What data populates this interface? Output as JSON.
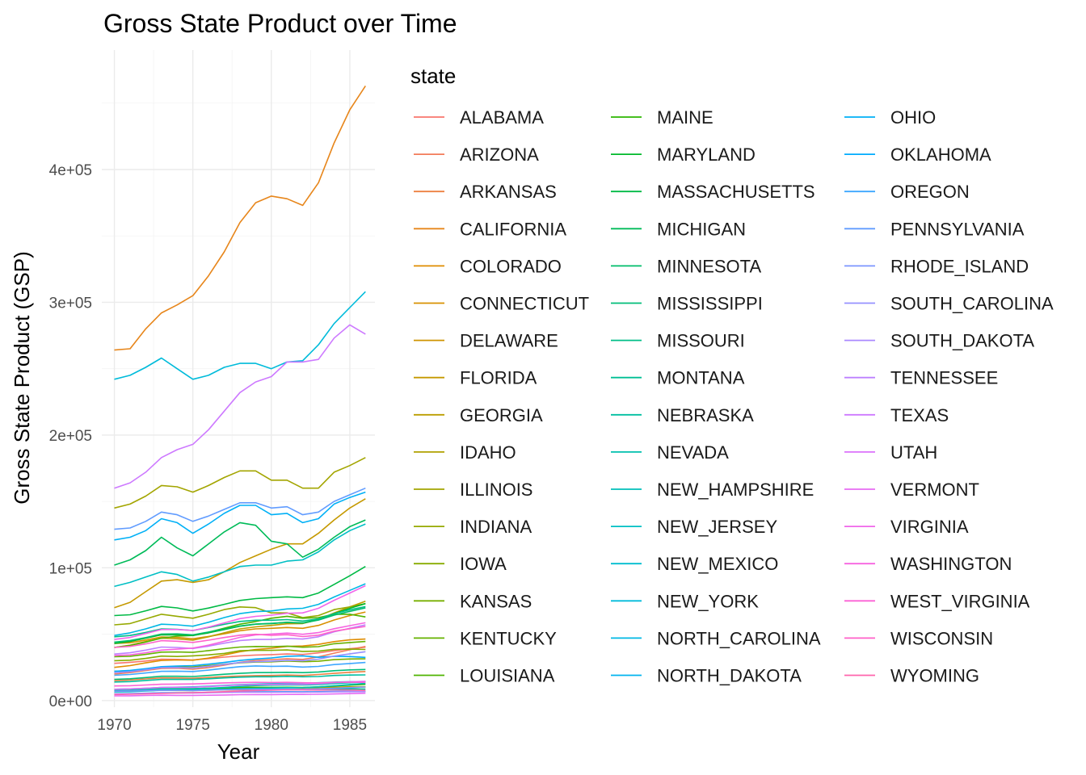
{
  "chart_data": {
    "type": "line",
    "title": "Gross State Product over Time",
    "xlabel": "Year",
    "ylabel": "Gross State Product (GSP)",
    "x": [
      1970,
      1971,
      1972,
      1973,
      1974,
      1975,
      1976,
      1977,
      1978,
      1979,
      1980,
      1981,
      1982,
      1983,
      1984,
      1985,
      1986
    ],
    "xlim": [
      1969.2,
      1986.6
    ],
    "ylim": [
      -5000,
      490000
    ],
    "x_ticks": [
      1970,
      1975,
      1980,
      1985
    ],
    "x_tick_labels": [
      "1970",
      "1975",
      "1980",
      "1985"
    ],
    "y_ticks": [
      0,
      100000,
      200000,
      300000,
      400000
    ],
    "y_tick_labels": [
      "0e+00",
      "1e+05",
      "2e+05",
      "3e+05",
      "4e+05"
    ],
    "grid": true,
    "legend": {
      "title": "state",
      "placement": "right",
      "columns": 3
    },
    "series": [
      {
        "name": "ALABAMA",
        "color": "#F8766D",
        "values": [
          28000,
          28800,
          29800,
          31200,
          31000,
          30600,
          31600,
          32700,
          33700,
          34300,
          34600,
          35100,
          34700,
          35900,
          37600,
          39000,
          40200
        ]
      },
      {
        "name": "ARIZONA",
        "color": "#F37B59",
        "values": [
          20000,
          21000,
          22600,
          24200,
          24400,
          23600,
          24800,
          26600,
          28800,
          30300,
          30900,
          31400,
          31000,
          32900,
          35700,
          38300,
          40700
        ]
      },
      {
        "name": "ARKANSAS",
        "color": "#ED8141",
        "values": [
          15000,
          15500,
          16300,
          17100,
          17000,
          16800,
          17400,
          18000,
          18500,
          18800,
          18900,
          19200,
          18900,
          19600,
          20500,
          21300,
          21900
        ]
      },
      {
        "name": "CALIFORNIA",
        "color": "#E7861B",
        "values": [
          264000,
          265000,
          280000,
          292000,
          298000,
          305000,
          320000,
          338000,
          360000,
          375000,
          380000,
          378000,
          373000,
          390000,
          420000,
          445000,
          463000
        ]
      },
      {
        "name": "COLORADO",
        "color": "#DF8C00",
        "values": [
          25000,
          26300,
          28400,
          30200,
          30600,
          30400,
          32000,
          34300,
          36800,
          38500,
          39400,
          40800,
          41100,
          42300,
          44400,
          45700,
          46300
        ]
      },
      {
        "name": "CONNECTICUT",
        "color": "#D89000",
        "values": [
          43000,
          43500,
          45600,
          47900,
          47600,
          46500,
          48300,
          50300,
          52600,
          54000,
          54400,
          55000,
          54400,
          56600,
          60700,
          64000,
          66700
        ]
      },
      {
        "name": "DELAWARE",
        "color": "#CF9400",
        "values": [
          7000,
          7200,
          7500,
          7700,
          7600,
          7500,
          7800,
          8000,
          8200,
          8300,
          8400,
          8500,
          8400,
          8800,
          9300,
          9800,
          10200
        ]
      },
      {
        "name": "FLORIDA",
        "color": "#C59900",
        "values": [
          70000,
          74000,
          82000,
          90000,
          91000,
          89000,
          91000,
          97000,
          104000,
          109000,
          114000,
          118000,
          118000,
          126000,
          136000,
          145000,
          152000
        ]
      },
      {
        "name": "GEORGIA",
        "color": "#BB9D00",
        "values": [
          40000,
          41700,
          44500,
          47000,
          46500,
          45500,
          48000,
          51000,
          54000,
          55500,
          56600,
          57800,
          58000,
          61000,
          66000,
          70500,
          74800
        ]
      },
      {
        "name": "IDAHO",
        "color": "#B0A100",
        "values": [
          7500,
          7800,
          8300,
          8900,
          9000,
          8900,
          9300,
          9600,
          9900,
          10000,
          9900,
          9800,
          9500,
          9800,
          10100,
          10300,
          10400
        ]
      },
      {
        "name": "ILLINOIS",
        "color": "#A3A500",
        "values": [
          145000,
          148000,
          154000,
          162000,
          161000,
          157000,
          162000,
          168000,
          173000,
          173000,
          166000,
          166000,
          160000,
          160000,
          172000,
          177000,
          183000
        ]
      },
      {
        "name": "INDIANA",
        "color": "#96A900",
        "values": [
          57000,
          58000,
          61500,
          65000,
          63500,
          62000,
          65000,
          68500,
          70500,
          70000,
          66000,
          66000,
          62500,
          64000,
          68500,
          70500,
          73000
        ]
      },
      {
        "name": "IOWA",
        "color": "#88AC00",
        "values": [
          30000,
          30400,
          31700,
          33500,
          33200,
          33700,
          34400,
          35500,
          37500,
          37800,
          37800,
          38100,
          37000,
          37200,
          38600,
          38700,
          38500
        ]
      },
      {
        "name": "KANSAS",
        "color": "#78AF00",
        "values": [
          22000,
          22500,
          23700,
          25000,
          25300,
          25400,
          26300,
          27400,
          28400,
          29000,
          29200,
          29800,
          29300,
          29600,
          30800,
          31300,
          31400
        ]
      },
      {
        "name": "KENTUCKY",
        "color": "#66B200",
        "values": [
          33000,
          33400,
          34800,
          36500,
          36600,
          36300,
          37600,
          39100,
          40300,
          40700,
          40600,
          41000,
          40200,
          40600,
          42800,
          43700,
          44500
        ]
      },
      {
        "name": "LOUISIANA",
        "color": "#4FB400",
        "values": [
          40000,
          41500,
          44000,
          47000,
          48500,
          49000,
          51500,
          54500,
          57500,
          59500,
          62000,
          63500,
          62000,
          62500,
          65000,
          65000,
          63000
        ]
      },
      {
        "name": "MAINE",
        "color": "#2BB600",
        "values": [
          7500,
          7800,
          8200,
          8600,
          8500,
          8400,
          8800,
          9200,
          9600,
          9800,
          9900,
          10000,
          9900,
          10300,
          11000,
          11600,
          12200
        ]
      },
      {
        "name": "MARYLAND",
        "color": "#00B82A",
        "values": [
          43000,
          44500,
          47000,
          49500,
          49500,
          49000,
          51000,
          53500,
          56000,
          57500,
          58000,
          59000,
          58500,
          61000,
          65500,
          69500,
          73000
        ]
      },
      {
        "name": "MASSACHUSETTS",
        "color": "#00BA45",
        "values": [
          64000,
          64600,
          67600,
          70900,
          69800,
          67500,
          69700,
          72500,
          75400,
          76800,
          77500,
          78100,
          77500,
          81000,
          87500,
          94000,
          101000
        ]
      },
      {
        "name": "MICHIGAN",
        "color": "#00BB59",
        "values": [
          102000,
          106000,
          113000,
          123000,
          115000,
          109000,
          118000,
          127000,
          134000,
          132000,
          120000,
          118000,
          108000,
          114000,
          123000,
          131000,
          136000
        ]
      },
      {
        "name": "MINNESOTA",
        "color": "#00BC6A",
        "values": [
          44000,
          45200,
          47400,
          50100,
          50200,
          49500,
          51600,
          54000,
          56200,
          57600,
          58100,
          58800,
          58400,
          60600,
          64300,
          67200,
          69800
        ]
      },
      {
        "name": "MISSISSIPPI",
        "color": "#00BD79",
        "values": [
          16000,
          16400,
          17300,
          18300,
          18300,
          18100,
          18900,
          19800,
          20500,
          21000,
          21100,
          21300,
          21000,
          21500,
          22500,
          23100,
          23400
        ]
      },
      {
        "name": "MISSOURI",
        "color": "#00BE87",
        "values": [
          48000,
          49000,
          51300,
          54000,
          53600,
          52800,
          55000,
          57400,
          59600,
          60500,
          60500,
          61000,
          59900,
          61500,
          65500,
          68400,
          70800
        ]
      },
      {
        "name": "MONTANA",
        "color": "#00BF94",
        "values": [
          7000,
          7200,
          7600,
          8100,
          8100,
          8000,
          8300,
          8500,
          8700,
          8800,
          8700,
          8700,
          8500,
          8700,
          8900,
          8800,
          8600
        ]
      },
      {
        "name": "NEBRASKA",
        "color": "#00BFA1",
        "values": [
          14000,
          14300,
          15100,
          15900,
          15900,
          15900,
          16400,
          17100,
          17600,
          17900,
          17900,
          18200,
          17900,
          18100,
          18900,
          19200,
          19300
        ]
      },
      {
        "name": "NEVADA",
        "color": "#00C0AD",
        "values": [
          7500,
          7800,
          8300,
          8800,
          8900,
          8900,
          9300,
          9900,
          10700,
          11300,
          11600,
          11800,
          11700,
          12000,
          12800,
          13400,
          14100
        ]
      },
      {
        "name": "NEW_HAMPSHIRE",
        "color": "#00BFB9",
        "values": [
          6500,
          6700,
          7200,
          7700,
          7700,
          7600,
          8000,
          8500,
          9000,
          9300,
          9500,
          9700,
          9800,
          10300,
          11200,
          12100,
          13000
        ]
      },
      {
        "name": "NEW_JERSEY",
        "color": "#00BFC4",
        "values": [
          86000,
          89000,
          93000,
          97000,
          95000,
          90000,
          93000,
          97000,
          101000,
          102000,
          102000,
          105000,
          106000,
          112000,
          121000,
          128000,
          133000
        ]
      },
      {
        "name": "NEW_MEXICO",
        "color": "#00BDCF",
        "values": [
          8500,
          8800,
          9300,
          9900,
          10100,
          10300,
          10800,
          11400,
          12000,
          12400,
          12700,
          13100,
          13100,
          13400,
          13900,
          14200,
          14300
        ]
      },
      {
        "name": "NEW_YORK",
        "color": "#00BBDA",
        "values": [
          242000,
          245000,
          251000,
          258000,
          250000,
          242000,
          245000,
          251000,
          254000,
          254000,
          250000,
          255000,
          256000,
          268000,
          284000,
          296000,
          308000
        ]
      },
      {
        "name": "NORTH_CAROLINA",
        "color": "#00B8E4",
        "values": [
          49000,
          51000,
          54000,
          57500,
          57000,
          56000,
          59000,
          62500,
          65500,
          67000,
          67500,
          69000,
          69500,
          72500,
          78000,
          83000,
          88000
        ]
      },
      {
        "name": "NORTH_DAKOTA",
        "color": "#00B4EF",
        "values": [
          5000,
          5200,
          5500,
          5900,
          5900,
          5900,
          6100,
          6300,
          6500,
          6600,
          6600,
          6700,
          6600,
          6700,
          6900,
          6900,
          6800
        ]
      },
      {
        "name": "OHIO",
        "color": "#00B0F6",
        "values": [
          121000,
          123000,
          128000,
          137000,
          134000,
          126000,
          133000,
          141000,
          147000,
          147000,
          140000,
          141000,
          134000,
          137000,
          148000,
          153000,
          157000
        ]
      },
      {
        "name": "OKLAHOMA",
        "color": "#00ABFD",
        "values": [
          22000,
          22700,
          24000,
          25500,
          26000,
          26300,
          27400,
          28700,
          30200,
          31300,
          32100,
          33400,
          33700,
          32600,
          33300,
          33100,
          32500
        ]
      },
      {
        "name": "OREGON",
        "color": "#3DA7FF",
        "values": [
          19000,
          19600,
          20800,
          22000,
          22100,
          21900,
          22900,
          24300,
          25500,
          26100,
          25800,
          25900,
          25200,
          25700,
          27100,
          27900,
          28700
        ]
      },
      {
        "name": "PENNSYLVANIA",
        "color": "#619CFF",
        "values": [
          129000,
          130000,
          135000,
          142000,
          140000,
          135000,
          139000,
          144000,
          149000,
          149000,
          145000,
          146000,
          140000,
          142000,
          150000,
          155000,
          160000
        ]
      },
      {
        "name": "RHODE_ISLAND",
        "color": "#7C96FF",
        "values": [
          7000,
          7200,
          7500,
          7800,
          7700,
          7500,
          7800,
          8100,
          8400,
          8500,
          8500,
          8600,
          8500,
          8800,
          9300,
          9700,
          10200
        ]
      },
      {
        "name": "SOUTH_CAROLINA",
        "color": "#9590FF",
        "values": [
          21000,
          21800,
          23200,
          24800,
          24900,
          24600,
          25800,
          27300,
          28600,
          29300,
          29600,
          30200,
          30000,
          31200,
          33500,
          35200,
          36800
        ]
      },
      {
        "name": "SOUTH_DAKOTA",
        "color": "#AA88FF",
        "values": [
          5000,
          5100,
          5400,
          5700,
          5700,
          5700,
          5900,
          6100,
          6300,
          6300,
          6300,
          6400,
          6300,
          6400,
          6600,
          6700,
          6700
        ]
      },
      {
        "name": "TENNESSEE",
        "color": "#BD81FF",
        "values": [
          35000,
          36000,
          38000,
          40300,
          40000,
          39200,
          41000,
          43200,
          45200,
          46000,
          46000,
          46800,
          46300,
          48000,
          51800,
          54400,
          57000
        ]
      },
      {
        "name": "TEXAS",
        "color": "#CD79FF",
        "values": [
          160000,
          164000,
          172000,
          183000,
          189000,
          193000,
          204000,
          218000,
          232000,
          240000,
          244000,
          255000,
          255000,
          257000,
          273000,
          283000,
          276000
        ]
      },
      {
        "name": "UTAH",
        "color": "#DB72FB",
        "values": [
          8500,
          8800,
          9300,
          9900,
          10000,
          10000,
          10500,
          11100,
          11700,
          12000,
          12100,
          12400,
          12300,
          12700,
          13500,
          14100,
          14500
        ]
      },
      {
        "name": "VERMONT",
        "color": "#E76BF3",
        "values": [
          3500,
          3600,
          3800,
          4000,
          3900,
          3900,
          4000,
          4200,
          4400,
          4500,
          4500,
          4600,
          4600,
          4700,
          5000,
          5200,
          5500
        ]
      },
      {
        "name": "VIRGINIA",
        "color": "#F066EA",
        "values": [
          46000,
          47500,
          50500,
          53500,
          53500,
          52800,
          55300,
          58500,
          61700,
          63400,
          64300,
          65700,
          66000,
          69500,
          75500,
          81000,
          86500
        ]
      },
      {
        "name": "WASHINGTON",
        "color": "#F763E0",
        "values": [
          34000,
          34400,
          36000,
          38000,
          38700,
          39500,
          41700,
          44600,
          47600,
          49400,
          50100,
          50800,
          49900,
          51200,
          54100,
          56400,
          58600
        ]
      },
      {
        "name": "WEST_VIRGINIA",
        "color": "#FC61D5",
        "values": [
          11000,
          11200,
          11700,
          12300,
          12400,
          12500,
          12900,
          13300,
          13600,
          13700,
          13600,
          13700,
          13400,
          13300,
          13700,
          13800,
          13700
        ]
      },
      {
        "name": "WISCONSIN",
        "color": "#FF61C9",
        "values": [
          40000,
          40800,
          42700,
          45100,
          44700,
          43800,
          45500,
          47500,
          49200,
          49900,
          49100,
          49600,
          48200,
          49200,
          52300,
          54100,
          55800
        ]
      },
      {
        "name": "WYOMING",
        "color": "#FF65AC",
        "values": [
          4500,
          4700,
          5000,
          5400,
          5700,
          5900,
          6300,
          6700,
          7200,
          7500,
          7800,
          8100,
          8000,
          7900,
          8000,
          7900,
          7600
        ]
      }
    ]
  }
}
